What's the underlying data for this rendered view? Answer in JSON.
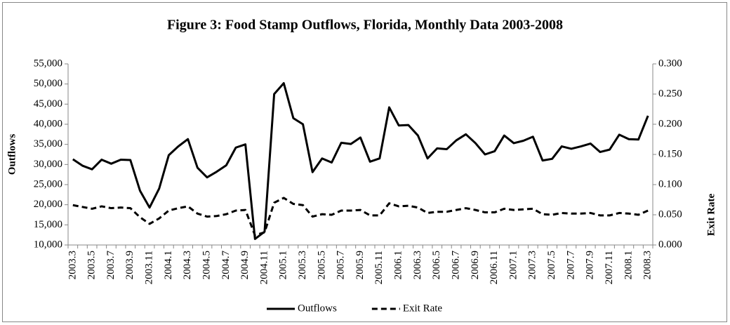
{
  "chart_data": {
    "type": "line",
    "title": "Figure 3: Food Stamp Outflows, Florida, Monthly Data 2003-2008",
    "y_label": "Outflows",
    "y2_label": "Exit Rate",
    "categories": [
      "2003.3",
      null,
      "2003.5",
      null,
      "2003.7",
      null,
      "2003.9",
      null,
      "2003.11",
      null,
      "2004.1",
      null,
      "2004.3",
      null,
      "2004.5",
      null,
      "2004.7",
      null,
      "2004.9",
      null,
      "2004.11",
      null,
      "2005.1",
      null,
      "2005.3",
      null,
      "2005.5",
      null,
      "2005.7",
      null,
      "2005.9",
      null,
      "2005.11",
      null,
      "2006.1",
      null,
      "2006.3",
      null,
      "2006.5",
      null,
      "2006.7",
      null,
      "2006.9",
      null,
      "2006.11",
      null,
      "2007.1",
      null,
      "2007.3",
      null,
      "2007.5",
      null,
      "2007.7",
      null,
      "2007.9",
      null,
      "2007.11",
      null,
      "2008.1",
      null,
      "2008.3"
    ],
    "series": [
      {
        "name": "Outflows",
        "color": "#000000",
        "line_style": "solid",
        "values": [
          31300,
          29700,
          28800,
          31200,
          30200,
          31200,
          31100,
          23500,
          19300,
          24000,
          32300,
          34500,
          36300,
          29200,
          26800,
          28200,
          29800,
          34200,
          35000,
          11500,
          13300,
          47500,
          50200,
          41500,
          40000,
          28100,
          31500,
          30500,
          35400,
          35100,
          36700,
          30700,
          31500,
          44200,
          39700,
          39800,
          37200,
          31500,
          34000,
          33800,
          36000,
          37500,
          35300,
          32500,
          33300,
          37200,
          35300,
          35900,
          36900,
          31000,
          31400,
          34500,
          33900,
          34500,
          35200,
          33100,
          33700,
          37400,
          36300,
          36200,
          42100
        ]
      },
      {
        "name": "Exit Rate",
        "color": "#000000",
        "line_style": "dashed",
        "axis": "y2",
        "values": [
          0.066,
          0.063,
          0.06,
          0.064,
          0.061,
          0.062,
          0.061,
          0.046,
          0.035,
          0.044,
          0.057,
          0.061,
          0.064,
          0.052,
          0.047,
          0.048,
          0.051,
          0.057,
          0.058,
          0.016,
          0.021,
          0.07,
          0.078,
          0.068,
          0.066,
          0.047,
          0.051,
          0.05,
          0.057,
          0.057,
          0.058,
          0.049,
          0.049,
          0.069,
          0.064,
          0.065,
          0.062,
          0.053,
          0.055,
          0.055,
          0.058,
          0.061,
          0.058,
          0.054,
          0.054,
          0.06,
          0.058,
          0.059,
          0.06,
          0.051,
          0.05,
          0.053,
          0.052,
          0.052,
          0.053,
          0.049,
          0.049,
          0.053,
          0.052,
          0.05,
          0.057
        ]
      }
    ],
    "ylim": [
      10000,
      55000
    ],
    "yticks": [
      {
        "value": 10000,
        "label": "10,000"
      },
      {
        "value": 15000,
        "label": "15,000"
      },
      {
        "value": 20000,
        "label": "20,000"
      },
      {
        "value": 25000,
        "label": "25,000"
      },
      {
        "value": 30000,
        "label": "30,000"
      },
      {
        "value": 35000,
        "label": "35,000"
      },
      {
        "value": 40000,
        "label": "40,000"
      },
      {
        "value": 45000,
        "label": "45,000"
      },
      {
        "value": 50000,
        "label": "50,000"
      },
      {
        "value": 55000,
        "label": "55,000"
      }
    ],
    "y2lim": [
      0,
      0.3
    ],
    "y2ticks": [
      {
        "value": 0,
        "label": "0.000"
      },
      {
        "value": 0.05,
        "label": "0.050"
      },
      {
        "value": 0.1,
        "label": "0.100"
      },
      {
        "value": 0.15,
        "label": "0.150"
      },
      {
        "value": 0.2,
        "label": "0.200"
      },
      {
        "value": 0.25,
        "label": "0.250"
      },
      {
        "value": 0.3,
        "label": "0.300"
      }
    ],
    "grid": false,
    "legend": "bottom"
  }
}
